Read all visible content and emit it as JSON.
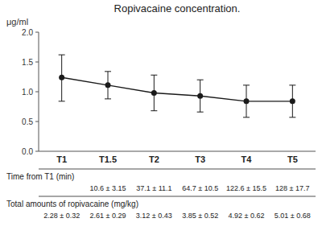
{
  "chart_data": {
    "type": "line",
    "title": "Ropivacaine concentration.",
    "y_label": "μg/ml",
    "categories": [
      "T1",
      "T1.5",
      "T2",
      "T3",
      "T4",
      "T5"
    ],
    "values": [
      1.24,
      1.11,
      0.98,
      0.93,
      0.84,
      0.84
    ],
    "error_upper": [
      0.38,
      0.23,
      0.3,
      0.27,
      0.27,
      0.27
    ],
    "error_lower": [
      0.4,
      0.23,
      0.3,
      0.27,
      0.27,
      0.27
    ],
    "color": "#1a1a1a",
    "marker": "circle",
    "line_style": "solid",
    "grid": false,
    "ylim": [
      0.0,
      2.0
    ],
    "yticks": [
      {
        "value": 0.0,
        "label": "0.0"
      },
      0.5,
      {
        "value": 1.0,
        "label": "1.0"
      },
      1.5,
      {
        "value": 2.0,
        "label": "2.0"
      }
    ],
    "table": {
      "rows": [
        {
          "label": [
            "Time from T1 (min)"
          ],
          "values": [
            null,
            "10.6 ± 3.15",
            "37.1 ± 11.1",
            "64.7 ± 10.5",
            "122.6 ± 15.5",
            "128 ± 17.7"
          ]
        },
        {
          "label": [
            "Total amounts of ropivacaine",
            "(mg/kg)"
          ],
          "values": [
            "2.28 ± 0.32",
            "2.61 ± 0.29",
            "3.12 ± 0.43",
            "3.85 ± 0.52",
            "4.92 ± 0.62",
            "5.01 ± 0.68"
          ]
        }
      ]
    }
  }
}
